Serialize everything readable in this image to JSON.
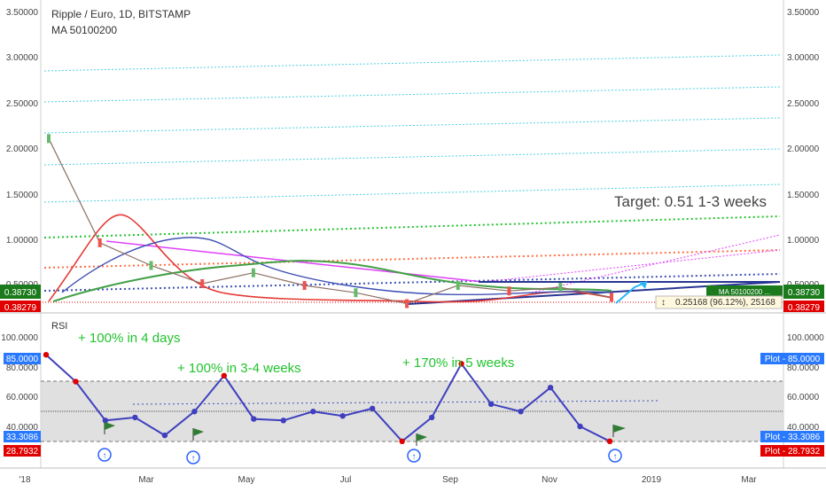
{
  "header": {
    "symbol_line": "Ripple / Euro, 1D, BITSTAMP",
    "indicator_line": "MA 50100200"
  },
  "annotations": {
    "target": "Target: 0.51 1-3 weeks",
    "gain1": "+ 100% in 4 days",
    "gain2": "+ 100% in 3-4 weeks",
    "gain3": "+ 170% in 5 weeks"
  },
  "price_axis": {
    "ticks": [
      "3.50000",
      "3.00000",
      "2.50000",
      "2.00000",
      "1.50000",
      "1.00000",
      "0.50000"
    ],
    "current_label": "0.38730",
    "second_label": "0.38279",
    "ma_tag": "MA 50100200 ...",
    "measure_label": "0.25168 (96.12%), 25168"
  },
  "rsi_panel": {
    "title": "RSI",
    "ticks": [
      "100.0000",
      "80.0000",
      "60.0000",
      "40.0000"
    ],
    "badge_top": "85.0000",
    "badge_mid1": "33.3086",
    "badge_mid2": "28.7932",
    "right_badges": [
      "Plot - 85.0000",
      "Plot - 33.3086",
      "Plot - 28.7932"
    ]
  },
  "time_axis": {
    "labels": [
      "'18",
      "Mar",
      "May",
      "Jul",
      "Sep",
      "Nov",
      "2019",
      "Mar"
    ]
  },
  "colors": {
    "price_ma50": "#e53935",
    "price_ma100": "#3f51b5",
    "price_ma200": "#43a047",
    "rsi_line": "#3f3fbf",
    "rsi_hot": "#e00000",
    "band_fill": "#d8d8d8",
    "label_green": "#1b7a1b",
    "label_red": "#e00000",
    "label_blue": "#2979ff",
    "fib_cyan": "#4dd0e1"
  },
  "chart_data": [
    {
      "type": "line",
      "title": "Ripple / Euro, 1D, BITSTAMP",
      "ylim": [
        0.3,
        3.6
      ],
      "x": [
        "2018-01",
        "2018-02",
        "2018-03",
        "2018-04",
        "2018-05",
        "2018-06",
        "2018-07",
        "2018-08",
        "2018-09",
        "2018-10",
        "2018-11",
        "2018-12"
      ],
      "series": [
        {
          "values": [
            2.1,
            0.95,
            0.7,
            0.5,
            0.62,
            0.48,
            0.4,
            0.28,
            0.48,
            0.42,
            0.46,
            0.35
          ]
        },
        {
          "name": "MA 50100200",
          "values": [
            1.8,
            1.2,
            0.75,
            0.58,
            0.6,
            0.55,
            0.45,
            0.33,
            0.38,
            0.43,
            0.44,
            0.4
          ]
        }
      ]
    },
    {
      "type": "line",
      "title": "RSI",
      "ylim": [
        25,
        100
      ],
      "series": [
        {
          "name": "RSI",
          "values": [
            88,
            70,
            44,
            46,
            34,
            50,
            74,
            45,
            44,
            50,
            47,
            52,
            30,
            46,
            82,
            55,
            50,
            66,
            40,
            30
          ]
        }
      ],
      "levels": [
        85.0,
        33.3086,
        28.7932
      ]
    }
  ]
}
